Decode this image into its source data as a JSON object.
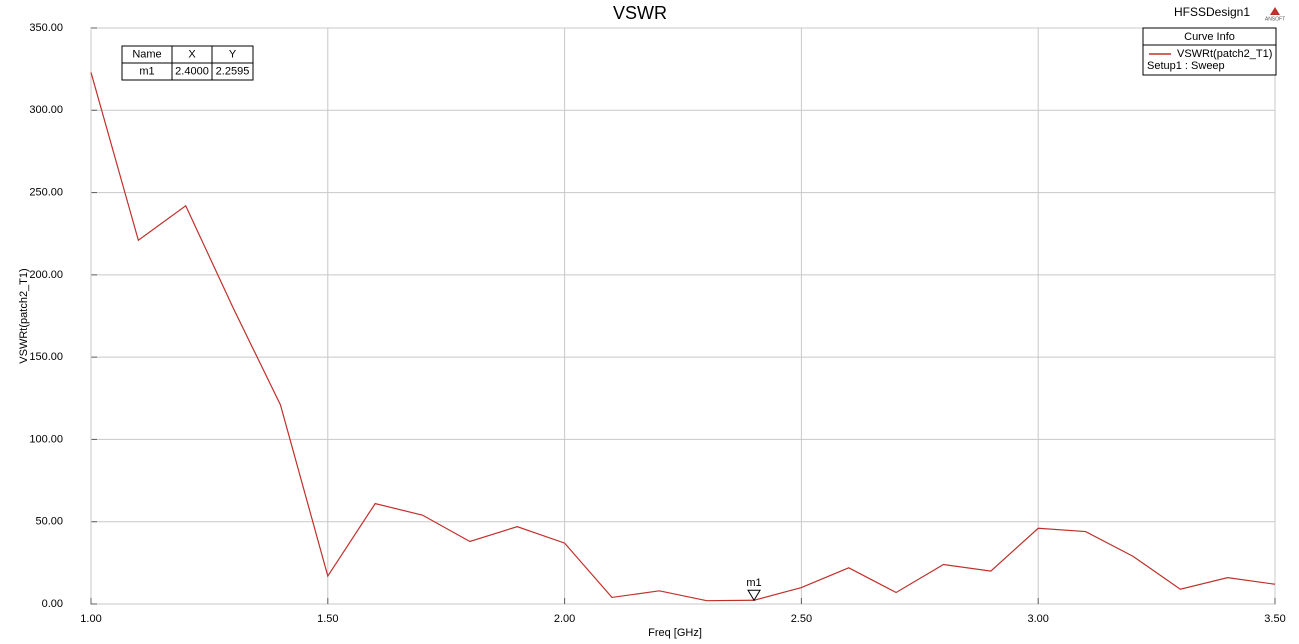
{
  "chart_data": {
    "type": "line",
    "title": "VSWR",
    "design_name": "HFSSDesign1",
    "logo_text": "ANSOFT",
    "x_label": "Freq [GHz]",
    "y_label": "VSWRt(patch2_T1)",
    "x": [
      1.0,
      1.1,
      1.2,
      1.3,
      1.4,
      1.5,
      1.6,
      1.7,
      1.8,
      1.9,
      2.0,
      2.1,
      2.2,
      2.3,
      2.4,
      2.5,
      2.6,
      2.7,
      2.8,
      2.9,
      3.0,
      3.1,
      3.2,
      3.3,
      3.4,
      3.5
    ],
    "series": [
      {
        "name": "VSWRt(patch2_T1)",
        "color": "#c0302b",
        "values": [
          323,
          221,
          242,
          180,
          121,
          17,
          61,
          54,
          38,
          47,
          37,
          4,
          8,
          2,
          2.2595,
          10,
          22,
          7,
          24,
          20,
          46,
          44,
          29,
          9,
          16,
          12
        ]
      }
    ],
    "legend_title": "Curve Info",
    "legend_subtitle": "Setup1 : Sweep",
    "legend_position": "upper right",
    "xlim": [
      1.0,
      3.5
    ],
    "ylim": [
      0,
      350
    ],
    "xticks": [
      {
        "value": 1.0,
        "label": "1.00"
      },
      {
        "value": 1.5,
        "label": "1.50"
      },
      {
        "value": 2.0,
        "label": "2.00"
      },
      {
        "value": 2.5,
        "label": "2.50"
      },
      {
        "value": 3.0,
        "label": "3.00"
      },
      {
        "value": 3.5,
        "label": "3.50"
      }
    ],
    "yticks": [
      {
        "value": 0,
        "label": "0.00"
      },
      {
        "value": 50,
        "label": "50.00"
      },
      {
        "value": 100,
        "label": "100.00"
      },
      {
        "value": 150,
        "label": "150.00"
      },
      {
        "value": 200,
        "label": "200.00"
      },
      {
        "value": 250,
        "label": "250.00"
      },
      {
        "value": 300,
        "label": "300.00"
      },
      {
        "value": 350,
        "label": "350.00"
      }
    ],
    "grid": true,
    "marker_table": {
      "columns": [
        "Name",
        "X",
        "Y"
      ],
      "rows": [
        [
          "m1",
          {
            "value": 2.4,
            "label": "2.4000"
          },
          2.2595
        ]
      ]
    }
  }
}
